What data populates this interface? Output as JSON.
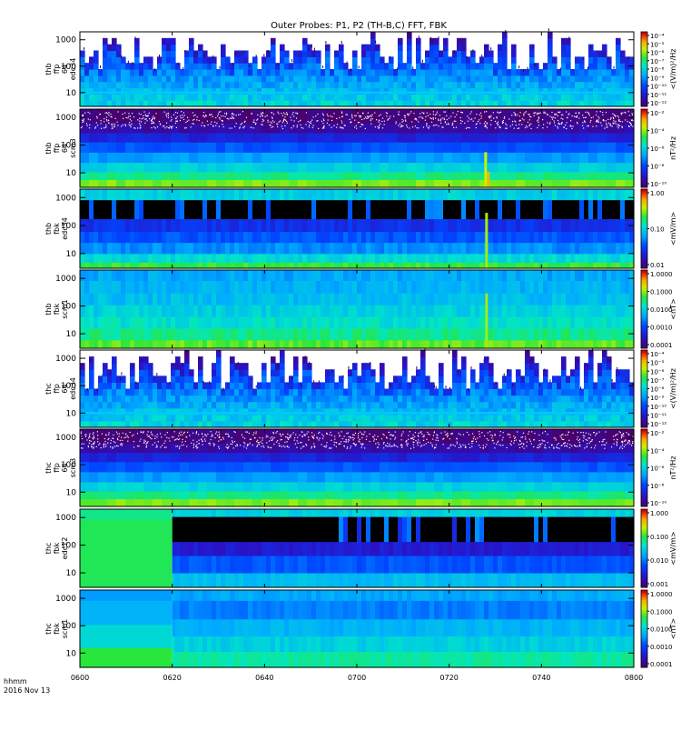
{
  "figure": {
    "title": "Outer Probes: P1, P2 (TH-B,C) FFT, FBK",
    "time_axis": {
      "tick_labels": [
        "0600",
        "0620",
        "0640",
        "0700",
        "0720",
        "0740",
        "0800"
      ],
      "label_line1": "hhmm",
      "label_line2": "2016 Nov 13"
    }
  },
  "chart_data": [
    {
      "type": "heatmap",
      "labels": [
        "thb",
        "ffp",
        "64",
        "edc34"
      ],
      "y_ticks": [
        "10",
        "100",
        "1000"
      ],
      "scale": "log",
      "cbar": {
        "unit": "<(V/m)²/Hz",
        "ticks": [
          "10⁻¹²",
          "10⁻¹¹",
          "10⁻¹⁰",
          "10⁻⁹",
          "10⁻⁸",
          "10⁻⁷",
          "10⁻⁶",
          "10⁻⁵",
          "10⁻⁴"
        ]
      },
      "style": "efield",
      "events": [],
      "background": "#ffffff"
    },
    {
      "type": "heatmap",
      "labels": [
        "thb",
        "ffp",
        "64",
        "scm3"
      ],
      "y_ticks": [
        "10",
        "100",
        "1000"
      ],
      "scale": "log",
      "cbar": {
        "unit": "nT²/Hz",
        "ticks": [
          "10⁻¹⁰",
          "10⁻⁸",
          "10⁻⁶",
          "10⁻⁴",
          "10⁻²"
        ]
      },
      "style": "bfield",
      "events": [
        "0728"
      ],
      "background": "#ffffff"
    },
    {
      "type": "heatmap",
      "labels": [
        "thb",
        "fbk",
        "edc34"
      ],
      "y_ticks": [
        "10",
        "100",
        "1000"
      ],
      "scale": "log",
      "cbar": {
        "unit": "<mV/m>",
        "ticks": [
          "0.01",
          "0.10",
          "1.00"
        ]
      },
      "style": "fbk_e",
      "events": [
        "0728"
      ],
      "background": "#ffffff"
    },
    {
      "type": "heatmap",
      "labels": [
        "thb",
        "fbk",
        "scm1"
      ],
      "y_ticks": [
        "10",
        "100",
        "1000"
      ],
      "scale": "log",
      "cbar": {
        "unit": "<nT>",
        "ticks": [
          "0.0001",
          "0.0010",
          "0.0100",
          "0.1000",
          "1.0000"
        ]
      },
      "style": "fbk_b",
      "events": [
        "0728"
      ],
      "background": "#ffffff"
    },
    {
      "type": "heatmap",
      "labels": [
        "thc",
        "ffp",
        "64",
        "edc34"
      ],
      "y_ticks": [
        "10",
        "100",
        "1000"
      ],
      "scale": "log",
      "cbar": {
        "unit": "<(V/m)²/Hz",
        "ticks": [
          "10⁻¹²",
          "10⁻¹¹",
          "10⁻¹⁰",
          "10⁻⁹",
          "10⁻⁸",
          "10⁻⁷",
          "10⁻⁶",
          "10⁻⁵",
          "10⁻⁴"
        ]
      },
      "style": "efield",
      "events": [],
      "background": "#ffffff"
    },
    {
      "type": "heatmap",
      "labels": [
        "thc",
        "ffp",
        "64",
        "scm3"
      ],
      "y_ticks": [
        "10",
        "100",
        "1000"
      ],
      "scale": "log",
      "cbar": {
        "unit": "nT²/Hz",
        "ticks": [
          "10⁻¹⁰",
          "10⁻⁸",
          "10⁻⁶",
          "10⁻⁴",
          "10⁻²"
        ]
      },
      "style": "bfield",
      "events": [],
      "background": "#ffffff"
    },
    {
      "type": "heatmap",
      "labels": [
        "thc",
        "fbk",
        "edc12"
      ],
      "y_ticks": [
        "10",
        "100",
        "1000"
      ],
      "scale": "log",
      "cbar": {
        "unit": "<mV/m>",
        "ticks": [
          "0.001",
          "0.010",
          "0.100",
          "1.000"
        ]
      },
      "style": "fbk_e_thc",
      "change_time": "0620",
      "events": [],
      "background": "#ffffff"
    },
    {
      "type": "heatmap",
      "labels": [
        "thc",
        "fbk",
        "scm1"
      ],
      "y_ticks": [
        "10",
        "100",
        "1000"
      ],
      "scale": "log",
      "cbar": {
        "unit": "<nT>",
        "ticks": [
          "0.0001",
          "0.0010",
          "0.0100",
          "0.1000",
          "1.0000"
        ]
      },
      "style": "fbk_b_thc",
      "change_time": "0620",
      "events": [],
      "background": "#ffffff"
    }
  ]
}
